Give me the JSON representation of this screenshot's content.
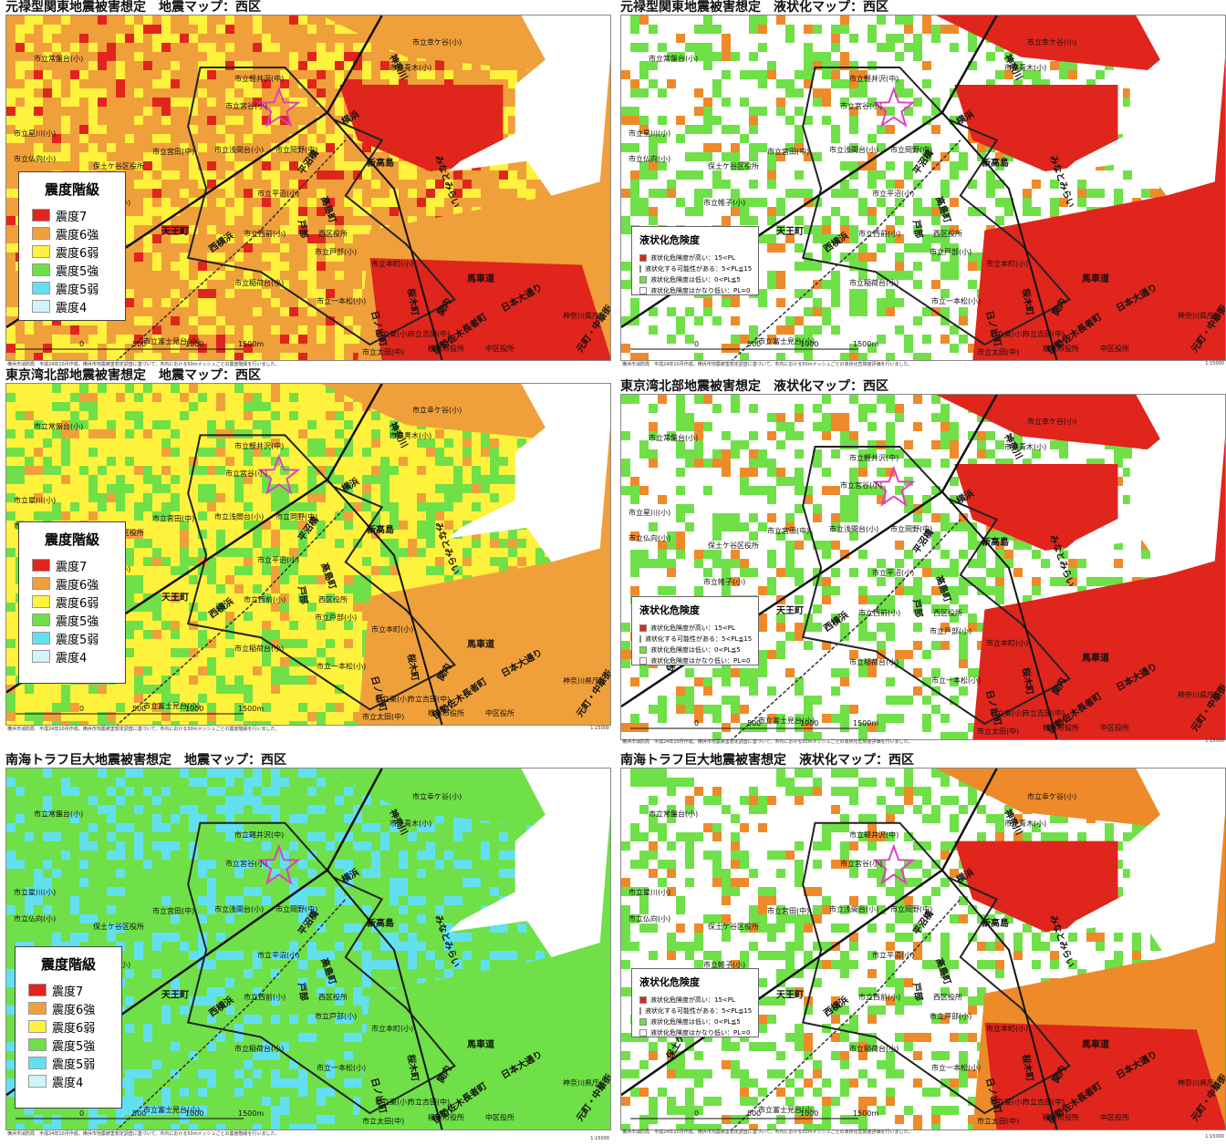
{
  "colors": {
    "shindo7": "#e0251c",
    "shindo6s": "#f0a03a",
    "shindo6w": "#fff23c",
    "shindo5s": "#6fe048",
    "shindo5w": "#63e0f0",
    "shindo4": "#cff4fb",
    "liq_high": "#e0251c",
    "liq_mid": "#ee8a2a",
    "liq_low": "#6fe048",
    "liq_none": "#ffffff",
    "star": "#e040c0"
  },
  "panels": [
    {
      "title": "元禄型関東地震被害想定　地震マップ：西区",
      "kind": "shindo",
      "base": "shindo6s",
      "mix": [
        "shindo6w",
        "shindo7"
      ],
      "east": "shindo6s",
      "red": true
    },
    {
      "title": "元禄型関東地震被害想定　液状化マップ：西区",
      "kind": "liq",
      "base": "liq_none",
      "mix": [
        "liq_low",
        "liq_mid"
      ],
      "east": "liq_high",
      "red": true
    },
    {
      "title": "東京湾北部地震被害想定　地震マップ：西区",
      "kind": "shindo",
      "base": "shindo6w",
      "mix": [
        "shindo5s",
        "shindo6s"
      ],
      "east": "shindo6s",
      "red": false
    },
    {
      "title": "東京湾北部地震被害想定　液状化マップ：西区",
      "kind": "liq",
      "base": "liq_none",
      "mix": [
        "liq_low",
        "liq_mid"
      ],
      "east": "liq_high",
      "red": true
    },
    {
      "title": "南海トラフ巨大地震被害想定　地震マップ：西区",
      "kind": "shindo",
      "base": "shindo5s",
      "mix": [
        "shindo5w",
        "shindo5s"
      ],
      "east": "shindo5s",
      "red": false
    },
    {
      "title": "南海トラフ巨大地震被害想定　液状化マップ：西区",
      "kind": "liq",
      "base": "liq_none",
      "mix": [
        "liq_low",
        "liq_mid"
      ],
      "east": "liq_mid",
      "red": true
    }
  ],
  "shindo_legend": {
    "title": "震度階級",
    "items": [
      {
        "label": "震度7",
        "color": "shindo7"
      },
      {
        "label": "震度6強",
        "color": "shindo6s"
      },
      {
        "label": "震度6弱",
        "color": "shindo6w"
      },
      {
        "label": "震度5強",
        "color": "shindo5s"
      },
      {
        "label": "震度5弱",
        "color": "shindo5w"
      },
      {
        "label": "震度4",
        "color": "shindo4"
      }
    ]
  },
  "liq_legend": {
    "title": "液状化危険度",
    "items": [
      {
        "label": "液状化危険度が高い：15<PL",
        "color": "liq_high"
      },
      {
        "label": "液状化する可能性がある：5<PL≦15",
        "color": "liq_mid"
      },
      {
        "label": "液状化危険度は低い：0<PL≦5",
        "color": "liq_low"
      },
      {
        "label": "液状化危険度はかなり低い：PL=0",
        "color": "liq_none"
      }
    ]
  },
  "places": [
    "市立幸ケ谷(小)",
    "市立常盤台(小)",
    "市立軽井沢(中)",
    "市立宮谷(小)",
    "市立浅間台(小)",
    "市立岡野(中)",
    "市立宮田(中)",
    "保土ケ谷区役所",
    "市立平沼(小)",
    "市立帷子(小)",
    "市立西前(小)",
    "西区役所",
    "市立戸部(小)",
    "市立本町(小)",
    "市立稲荷台(小)",
    "市立一本松(小)",
    "市立東(小)",
    "市立富士見台(小)",
    "市立太田(中)",
    "市立吉田(中)",
    "横浜市役所",
    "中区役所",
    "神奈川県庁",
    "市立横浜総合(高)",
    "市立仏向(小)",
    "市立星川(小)",
    "市立青木(小)"
  ],
  "roads": [
    "神奈川",
    "横浜",
    "新高島",
    "みなとみらい",
    "平沼橋",
    "高島町",
    "戸部",
    "西横浜",
    "天王町",
    "保土ケ谷",
    "桜木町",
    "馬車道",
    "日本大通り",
    "日ノ出町",
    "関内",
    "伊勢佐木長者町",
    "元町・中華街",
    "星川"
  ],
  "scale": {
    "s0": "0",
    "s1": "500",
    "s2": "1000",
    "s3": "1500m"
  },
  "footnote_left": "横浜市消防局　平成24年10月作成。横浜市地震被害想定調査に基づいて、市内における50mメッシュごとの震度階級を行いました。",
  "footnote_liq": "横浜市消防局　平成24年10月作成。横浜市地震被害想定調査に基づいて、市内における50mメッシュごとの液状化危険度評価を行いました。",
  "scale_fraction": "1:15000"
}
